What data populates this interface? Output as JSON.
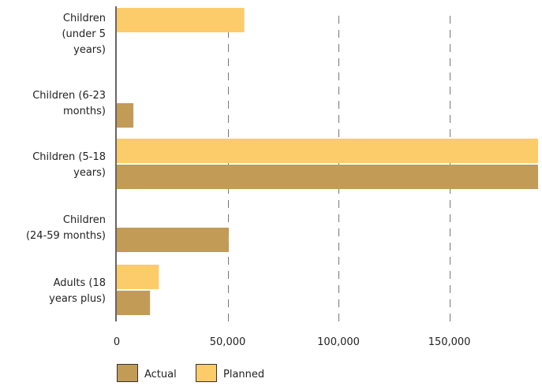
{
  "chart_data": {
    "type": "bar",
    "orientation": "horizontal",
    "categories": [
      [
        "Children",
        "(under 5",
        "years)"
      ],
      [
        "Children (6-23",
        "months)"
      ],
      [
        "Children (5-18",
        "years)"
      ],
      [
        "Children",
        "(24-59 months)"
      ],
      [
        "Adults (18",
        "years plus)"
      ]
    ],
    "series": [
      {
        "name": "Planned",
        "color": "#FCCB6A",
        "values": [
          57500,
          0,
          190000,
          0,
          19000
        ]
      },
      {
        "name": "Actual",
        "color": "#C29B57",
        "values": [
          0,
          7500,
          190000,
          50500,
          15000
        ]
      }
    ],
    "x_ticks": [
      0,
      50000,
      100000,
      150000
    ],
    "x_tick_labels": [
      "0",
      "50,000",
      "100,000",
      "150,000"
    ],
    "xlim": [
      0,
      190000
    ],
    "grid": "vertical dashed",
    "legend": {
      "placement": "bottom-left",
      "items": [
        {
          "label": "Actual",
          "color": "#C29B57"
        },
        {
          "label": "Planned",
          "color": "#FCCB6A"
        }
      ]
    }
  }
}
